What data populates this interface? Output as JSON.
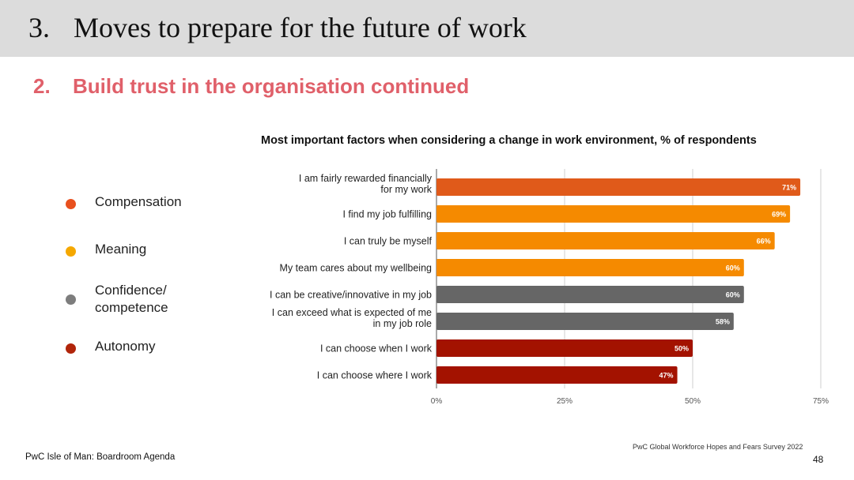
{
  "header": {
    "number": "3.",
    "title": "Moves to prepare for the future of work"
  },
  "subtitle": {
    "number": "2.",
    "text": "Build trust in the organisation continued"
  },
  "legend": [
    {
      "label": "Compensation",
      "color": "#e8501e"
    },
    {
      "label": "Meaning",
      "color": "#f5a800"
    },
    {
      "label": "Confidence/ competence",
      "color": "#7d7d7d"
    },
    {
      "label": "Autonomy",
      "color": "#b1250a"
    }
  ],
  "chart_data": {
    "type": "bar",
    "orientation": "horizontal",
    "title": "Most important factors when considering a change in work environment, % of respondents",
    "categories": [
      "I am fairly rewarded financially for my work",
      "I find my job fulfilling",
      "I can truly be myself",
      "My team cares about my wellbeing",
      "I can be creative/innovative in my job",
      "I can exceed what is expected of me in my job role",
      "I can choose when I work",
      "I can choose where I work"
    ],
    "values": [
      71,
      69,
      66,
      60,
      60,
      58,
      50,
      47
    ],
    "value_labels": [
      "71%",
      "69%",
      "66%",
      "60%",
      "60%",
      "58%",
      "50%",
      "47%"
    ],
    "bar_colors": [
      "#e05a1a",
      "#f58a00",
      "#f58a00",
      "#f58a00",
      "#666666",
      "#666666",
      "#a31200",
      "#a31200"
    ],
    "xlim": [
      0,
      75
    ],
    "xticks": [
      "0%",
      "25%",
      "50%",
      "75%"
    ],
    "grid": true
  },
  "footer": {
    "source": "PwC Global Workforce Hopes and Fears Survey 2022",
    "left": "PwC Isle of Man: Boardroom Agenda",
    "page": "48"
  }
}
